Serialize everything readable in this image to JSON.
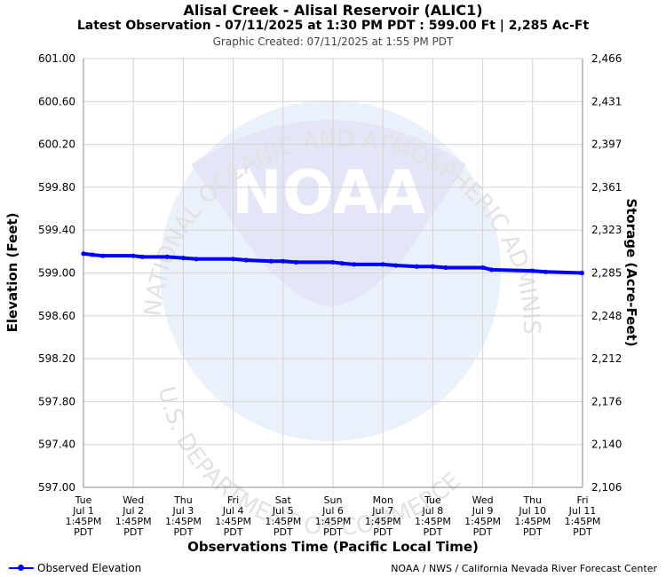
{
  "header": {
    "title": "Alisal Creek - Alisal Reservoir (ALIC1)",
    "subtitle": "Latest Observation - 07/11/2025 at 1:30 PM PDT : 599.00 Ft | 2,285 Ac-Ft",
    "created": "Graphic Created: 07/11/2025 at 1:55 PM PDT"
  },
  "watermark": {
    "logo_text": "NOAA",
    "ring_top": "NATIONAL OCEANIC AND ATMOSPHERIC ADMINISTRATION",
    "ring_bottom": "U.S. DEPARTMENT OF COMMERCE"
  },
  "footer": {
    "legend_label": "Observed Elevation",
    "credit": "NOAA / NWS / California Nevada River Forecast Center"
  },
  "chart_data": {
    "type": "line",
    "xlabel": "Observations Time (Pacific Local Time)",
    "ylabel": "Elevation (Feet)",
    "y2label": "Storage (Acre-Feet)",
    "ylim": [
      597.0,
      601.0
    ],
    "yticks": [
      {
        "value": 601.0,
        "label": "601.00"
      },
      {
        "value": 600.6,
        "label": "600.60"
      },
      {
        "value": 600.2,
        "label": "600.20"
      },
      {
        "value": 599.8,
        "label": "599.80"
      },
      {
        "value": 599.4,
        "label": "599.40"
      },
      {
        "value": 599.0,
        "label": "599.00"
      },
      {
        "value": 598.6,
        "label": "598.60"
      },
      {
        "value": 598.2,
        "label": "598.20"
      },
      {
        "value": 597.8,
        "label": "597.80"
      },
      {
        "value": 597.4,
        "label": "597.40"
      },
      {
        "value": 597.0,
        "label": "597.00"
      }
    ],
    "y2ticks": [
      "2,466",
      "2,431",
      "2,397",
      "2,361",
      "2,323",
      "2,285",
      "2,248",
      "2,212",
      "2,176",
      "2,140",
      "2,106"
    ],
    "xrange": [
      "2025-07-01 13:45",
      "2025-07-11 13:45"
    ],
    "xticks": [
      {
        "day": "Tue",
        "date": "Jul 1",
        "time": "1:45PM",
        "tz": "PDT"
      },
      {
        "day": "Wed",
        "date": "Jul 2",
        "time": "1:45PM",
        "tz": "PDT"
      },
      {
        "day": "Thu",
        "date": "Jul 3",
        "time": "1:45PM",
        "tz": "PDT"
      },
      {
        "day": "Fri",
        "date": "Jul 4",
        "time": "1:45PM",
        "tz": "PDT"
      },
      {
        "day": "Sat",
        "date": "Jul 5",
        "time": "1:45PM",
        "tz": "PDT"
      },
      {
        "day": "Sun",
        "date": "Jul 6",
        "time": "1:45PM",
        "tz": "PDT"
      },
      {
        "day": "Mon",
        "date": "Jul 7",
        "time": "1:45PM",
        "tz": "PDT"
      },
      {
        "day": "Tue",
        "date": "Jul 8",
        "time": "1:45PM",
        "tz": "PDT"
      },
      {
        "day": "Wed",
        "date": "Jul 9",
        "time": "1:45PM",
        "tz": "PDT"
      },
      {
        "day": "Thu",
        "date": "Jul 10",
        "time": "1:45PM",
        "tz": "PDT"
      },
      {
        "day": "Fri",
        "date": "Jul 11",
        "time": "1:45PM",
        "tz": "PDT"
      }
    ],
    "grid": true,
    "legend_position": "bottom-left",
    "series": [
      {
        "name": "Observed Elevation",
        "color": "#0000ff",
        "points": [
          {
            "x": "2025-07-01 13:45",
            "y": 599.18
          },
          {
            "x": "2025-07-01 18:00",
            "y": 599.17
          },
          {
            "x": "2025-07-01 23:00",
            "y": 599.16
          },
          {
            "x": "2025-07-02 13:45",
            "y": 599.16
          },
          {
            "x": "2025-07-02 18:00",
            "y": 599.15
          },
          {
            "x": "2025-07-03 06:00",
            "y": 599.15
          },
          {
            "x": "2025-07-03 13:45",
            "y": 599.14
          },
          {
            "x": "2025-07-03 20:00",
            "y": 599.13
          },
          {
            "x": "2025-07-04 13:45",
            "y": 599.13
          },
          {
            "x": "2025-07-04 20:00",
            "y": 599.12
          },
          {
            "x": "2025-07-05 08:00",
            "y": 599.11
          },
          {
            "x": "2025-07-05 13:45",
            "y": 599.11
          },
          {
            "x": "2025-07-05 20:00",
            "y": 599.1
          },
          {
            "x": "2025-07-06 13:45",
            "y": 599.1
          },
          {
            "x": "2025-07-06 18:00",
            "y": 599.09
          },
          {
            "x": "2025-07-07 00:00",
            "y": 599.08
          },
          {
            "x": "2025-07-07 13:45",
            "y": 599.08
          },
          {
            "x": "2025-07-07 20:00",
            "y": 599.07
          },
          {
            "x": "2025-07-08 06:00",
            "y": 599.06
          },
          {
            "x": "2025-07-08 13:45",
            "y": 599.06
          },
          {
            "x": "2025-07-08 20:00",
            "y": 599.05
          },
          {
            "x": "2025-07-09 13:45",
            "y": 599.05
          },
          {
            "x": "2025-07-09 18:00",
            "y": 599.03
          },
          {
            "x": "2025-07-10 13:45",
            "y": 599.02
          },
          {
            "x": "2025-07-10 20:00",
            "y": 599.01
          },
          {
            "x": "2025-07-11 13:30",
            "y": 599.0
          }
        ]
      }
    ]
  }
}
